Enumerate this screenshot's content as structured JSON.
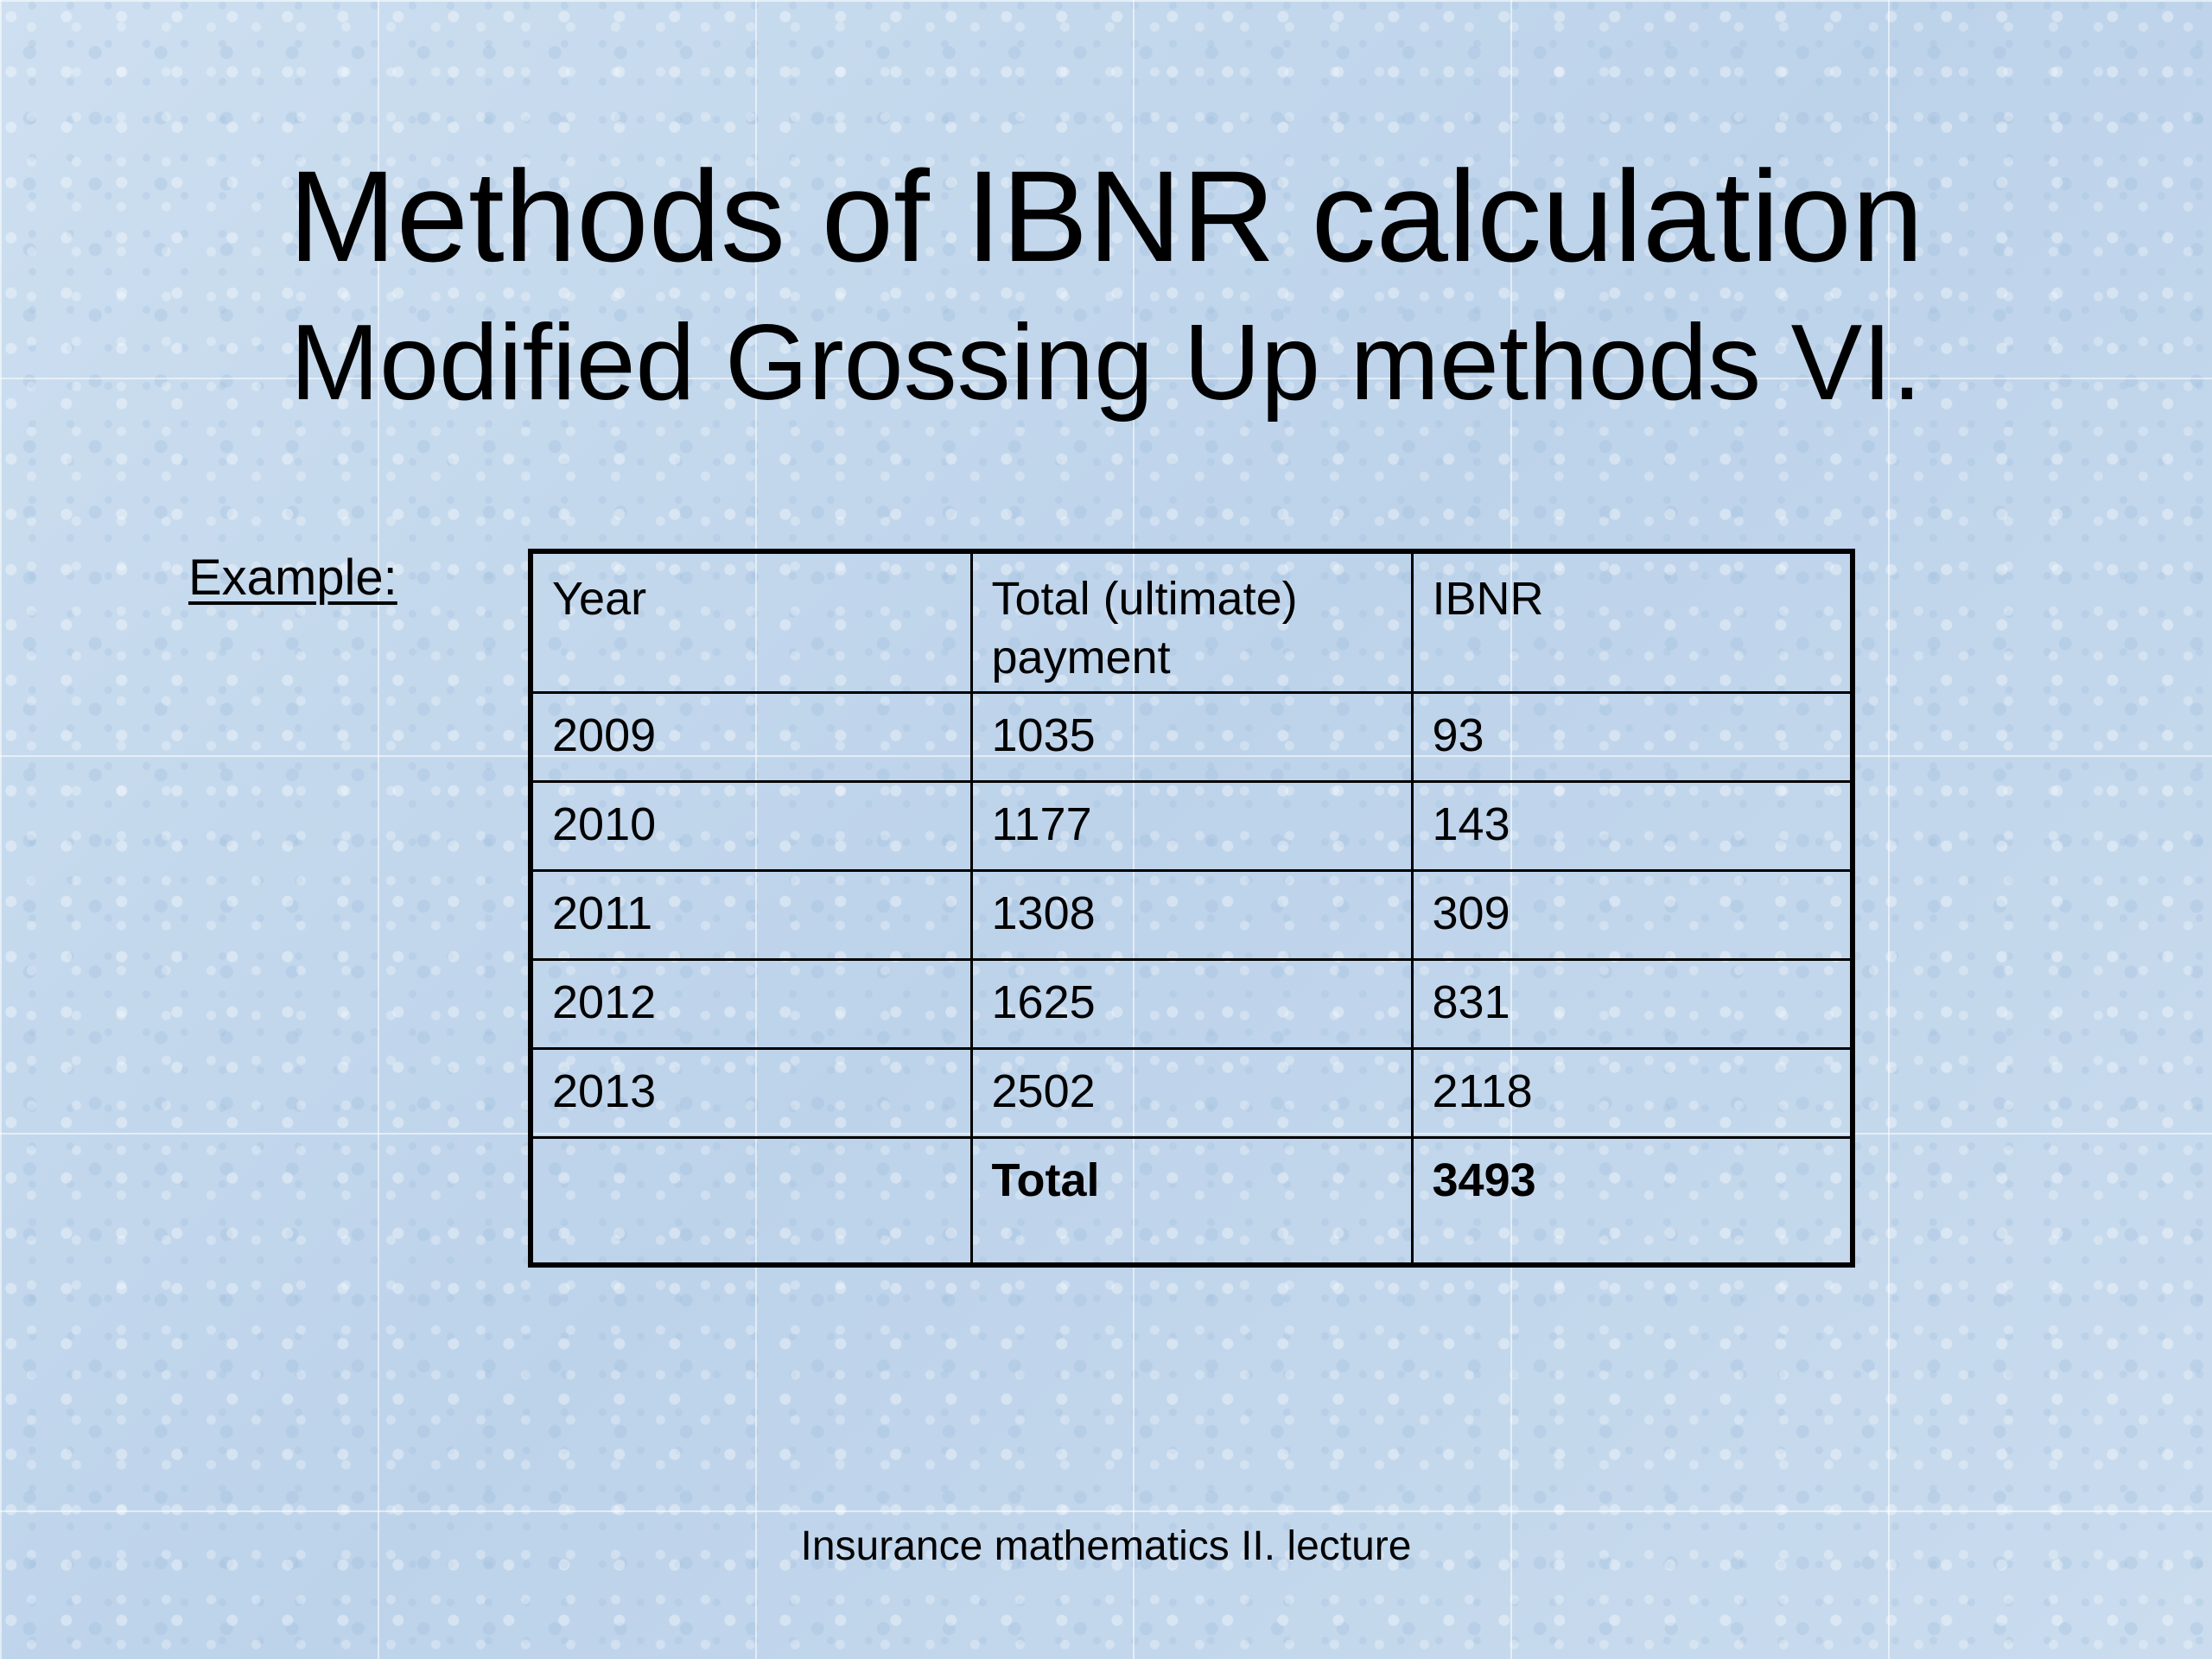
{
  "title": "Methods of IBNR calculation",
  "subtitle": "Modified Grossing Up methods VI.",
  "example_label": "Example:",
  "table": {
    "headers": [
      "Year",
      "Total (ultimate) payment",
      "IBNR"
    ],
    "rows": [
      [
        "2009",
        "1035",
        "93"
      ],
      [
        "2010",
        "1177",
        "143"
      ],
      [
        "2011",
        "1308",
        "309"
      ],
      [
        "2012",
        "1625",
        "831"
      ],
      [
        "2013",
        "2502",
        "2118"
      ]
    ],
    "total_row": [
      "",
      "Total",
      "3493"
    ]
  },
  "footer": "Insurance mathematics II. lecture"
}
